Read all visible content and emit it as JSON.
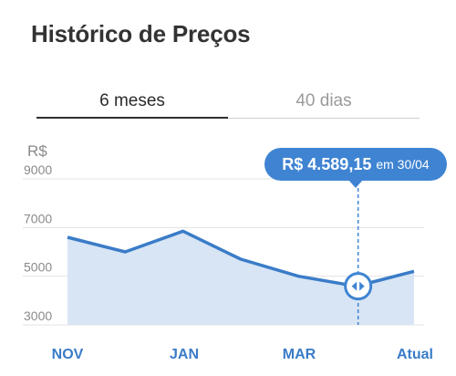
{
  "page_title": "Histórico de Preços",
  "tabs": [
    {
      "label": "6 meses",
      "active": true
    },
    {
      "label": "40 dias",
      "active": false
    }
  ],
  "tooltip": {
    "price": "R$ 4.589,15",
    "date_text": "em 30/04"
  },
  "colors": {
    "accent": "#3f84d2",
    "line": "#3a7cc8",
    "area": "#d8e5f4",
    "grid": "#e3e3e3"
  },
  "chart_data": {
    "type": "area",
    "unit_label": "R$",
    "y_ticks": [
      "9000",
      "7000",
      "5000",
      "3000"
    ],
    "ylim": [
      3000,
      9000
    ],
    "x_tick_labels": [
      "NOV",
      "JAN",
      "MAR",
      "Atual"
    ],
    "grid": true,
    "series": [
      {
        "values": [
          6600,
          6000,
          6850,
          5700,
          5000,
          4589,
          5200
        ]
      }
    ],
    "selected_point": {
      "index": 5,
      "value": 4589.15,
      "date": "30/04"
    }
  }
}
